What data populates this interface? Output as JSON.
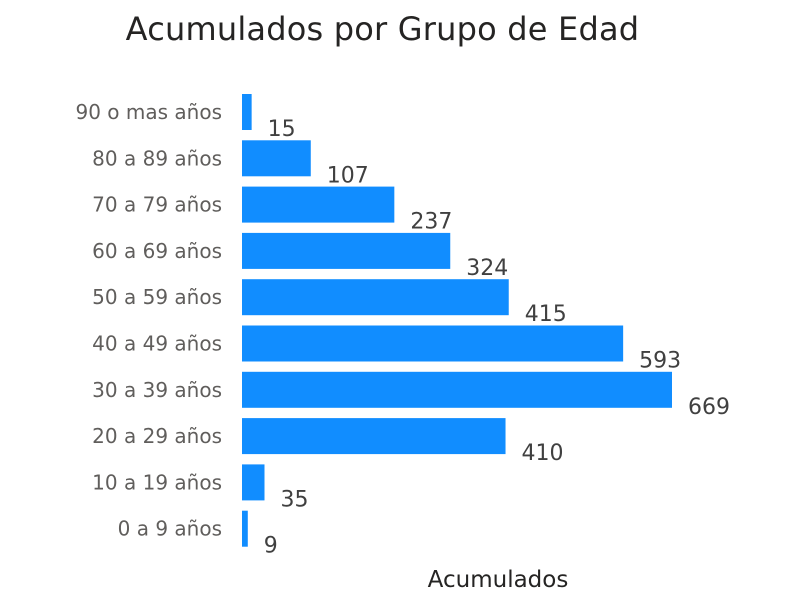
{
  "chart_data": {
    "type": "bar",
    "orientation": "horizontal",
    "title": "Acumulados por Grupo de Edad",
    "xlabel": "Acumulados",
    "ylabel": "",
    "categories": [
      "90 o mas años",
      "80 a 89 años",
      "70 a 79 años",
      "60 a 69 años",
      "50 a 59 años",
      "40 a 49 años",
      "30 a 39 años",
      "20 a 29 años",
      "10 a 19 años",
      "0 a 9 años"
    ],
    "values": [
      15,
      107,
      237,
      324,
      415,
      593,
      669,
      410,
      35,
      9
    ],
    "xlim": [
      0,
      669
    ],
    "grid": false,
    "data_labels": true,
    "bar_color": "#118DFF"
  }
}
